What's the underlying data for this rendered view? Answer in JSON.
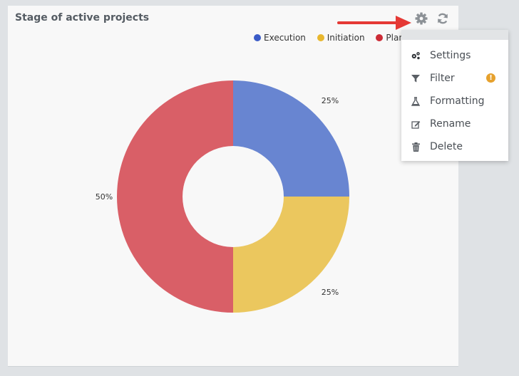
{
  "widget": {
    "title": "Stage of active projects"
  },
  "legend": [
    {
      "label": "Execution",
      "color": "#3a5bc7"
    },
    {
      "label": "Initiation",
      "color": "#e8b72e"
    },
    {
      "label": "Planning",
      "color": "#cc2b36"
    }
  ],
  "chart_data": {
    "type": "pie",
    "donut": true,
    "categories": [
      "Execution",
      "Initiation",
      "Planning"
    ],
    "values": [
      25,
      25,
      50
    ],
    "labels": [
      "25%",
      "25%",
      "50%"
    ],
    "colors": [
      "#6885d1",
      "#ebc75e",
      "#d95f67"
    ],
    "legend_position": "top-right"
  },
  "menu": {
    "items": [
      {
        "label": "Settings",
        "icon": "cogs-icon"
      },
      {
        "label": "Filter",
        "icon": "filter-icon",
        "warning": "!"
      },
      {
        "label": "Formatting",
        "icon": "flask-icon"
      },
      {
        "label": "Rename",
        "icon": "edit-icon"
      },
      {
        "label": "Delete",
        "icon": "trash-icon"
      }
    ]
  },
  "colors": {
    "arrow": "#e53935",
    "warning": "#e6a12d"
  }
}
